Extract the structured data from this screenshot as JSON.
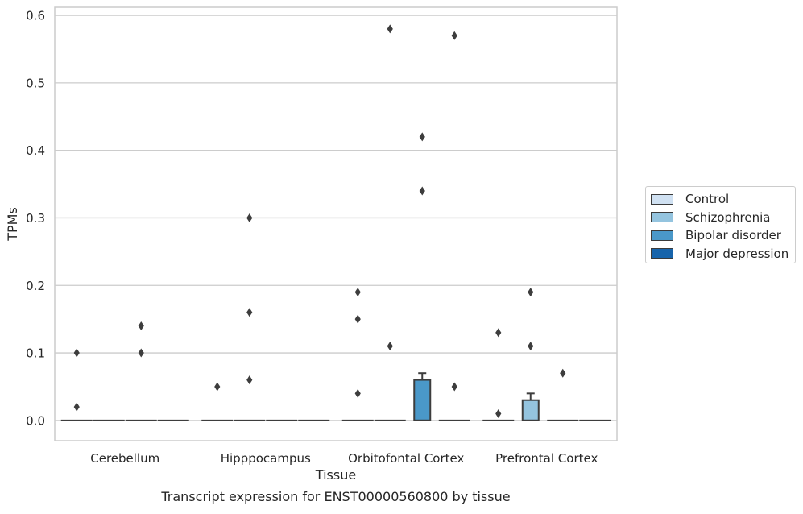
{
  "chart_data": {
    "type": "box",
    "title": "",
    "caption": "Transcript expression for ENST00000560800 by tissue",
    "xlabel": "Tissue",
    "ylabel": "TPMs",
    "ylim": [
      -0.03,
      0.612
    ],
    "yticks": [
      0.0,
      0.1,
      0.2,
      0.3,
      0.4,
      0.5,
      0.6
    ],
    "ytick_labels": [
      "0.0",
      "0.1",
      "0.2",
      "0.3",
      "0.4",
      "0.5",
      "0.6"
    ],
    "grid": "horizontal",
    "legend_position": "right",
    "categories": [
      "Cerebellum",
      "Hipppocampus",
      "Orbitofontal Cortex",
      "Prefrontal Cortex"
    ],
    "series": [
      {
        "name": "Control",
        "color": "#d0e1f2"
      },
      {
        "name": "Schizophrenia",
        "color": "#94c4df"
      },
      {
        "name": "Bipolar disorder",
        "color": "#4a98c9"
      },
      {
        "name": "Major depression",
        "color": "#1764ab"
      }
    ],
    "boxes": [
      {
        "category": "Cerebellum",
        "series": "Control",
        "q1": 0,
        "median": 0,
        "q3": 0,
        "whisker_low": 0,
        "whisker_high": 0,
        "outliers": [
          0.02,
          0.1
        ]
      },
      {
        "category": "Cerebellum",
        "series": "Schizophrenia",
        "q1": 0,
        "median": 0,
        "q3": 0,
        "whisker_low": 0,
        "whisker_high": 0,
        "outliers": []
      },
      {
        "category": "Cerebellum",
        "series": "Bipolar disorder",
        "q1": 0,
        "median": 0,
        "q3": 0,
        "whisker_low": 0,
        "whisker_high": 0,
        "outliers": [
          0.1,
          0.14
        ]
      },
      {
        "category": "Cerebellum",
        "series": "Major depression",
        "q1": 0,
        "median": 0,
        "q3": 0,
        "whisker_low": 0,
        "whisker_high": 0,
        "outliers": []
      },
      {
        "category": "Hipppocampus",
        "series": "Control",
        "q1": 0,
        "median": 0,
        "q3": 0,
        "whisker_low": 0,
        "whisker_high": 0,
        "outliers": [
          0.05
        ]
      },
      {
        "category": "Hipppocampus",
        "series": "Schizophrenia",
        "q1": 0,
        "median": 0,
        "q3": 0,
        "whisker_low": 0,
        "whisker_high": 0,
        "outliers": [
          0.06,
          0.16,
          0.3
        ]
      },
      {
        "category": "Hipppocampus",
        "series": "Bipolar disorder",
        "q1": 0,
        "median": 0,
        "q3": 0,
        "whisker_low": 0,
        "whisker_high": 0,
        "outliers": []
      },
      {
        "category": "Hipppocampus",
        "series": "Major depression",
        "q1": 0,
        "median": 0,
        "q3": 0,
        "whisker_low": 0,
        "whisker_high": 0,
        "outliers": []
      },
      {
        "category": "Orbitofontal Cortex",
        "series": "Control",
        "q1": 0,
        "median": 0,
        "q3": 0,
        "whisker_low": 0,
        "whisker_high": 0,
        "outliers": [
          0.04,
          0.15,
          0.19
        ]
      },
      {
        "category": "Orbitofontal Cortex",
        "series": "Schizophrenia",
        "q1": 0,
        "median": 0,
        "q3": 0,
        "whisker_low": 0,
        "whisker_high": 0,
        "outliers": [
          0.11,
          0.58
        ]
      },
      {
        "category": "Orbitofontal Cortex",
        "series": "Bipolar disorder",
        "q1": 0,
        "median": 0,
        "q3": 0.06,
        "whisker_low": 0,
        "whisker_high": 0.07,
        "outliers": [
          0.34,
          0.42
        ]
      },
      {
        "category": "Orbitofontal Cortex",
        "series": "Major depression",
        "q1": 0,
        "median": 0,
        "q3": 0,
        "whisker_low": 0,
        "whisker_high": 0,
        "outliers": [
          0.05,
          0.57
        ]
      },
      {
        "category": "Prefrontal Cortex",
        "series": "Control",
        "q1": 0,
        "median": 0,
        "q3": 0,
        "whisker_low": 0,
        "whisker_high": 0,
        "outliers": [
          0.01,
          0.13
        ]
      },
      {
        "category": "Prefrontal Cortex",
        "series": "Schizophrenia",
        "q1": 0,
        "median": 0,
        "q3": 0.03,
        "whisker_low": 0,
        "whisker_high": 0.04,
        "outliers": [
          0.11,
          0.19
        ]
      },
      {
        "category": "Prefrontal Cortex",
        "series": "Bipolar disorder",
        "q1": 0,
        "median": 0,
        "q3": 0,
        "whisker_low": 0,
        "whisker_high": 0,
        "outliers": [
          0.07
        ]
      },
      {
        "category": "Prefrontal Cortex",
        "series": "Major depression",
        "q1": 0,
        "median": 0,
        "q3": 0,
        "whisker_low": 0,
        "whisker_high": 0,
        "outliers": []
      }
    ]
  }
}
